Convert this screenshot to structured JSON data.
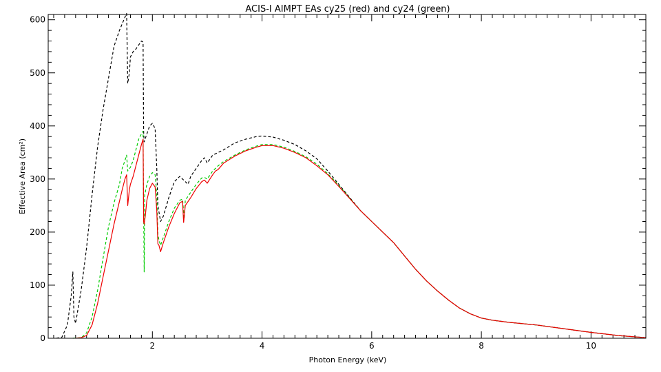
{
  "chart_data": {
    "type": "line",
    "title": "ACIS-I AIMPT EAs cy25 (red) and cy24 (green)",
    "xlabel": "Photon Energy (keV)",
    "ylabel": "Effective Area (cm²)",
    "xlim": [
      0.1,
      11.0
    ],
    "ylim": [
      0,
      610
    ],
    "x_ticks": [
      2,
      4,
      6,
      8,
      10
    ],
    "y_ticks": [
      0,
      100,
      200,
      300,
      400,
      500,
      600
    ],
    "grid": false,
    "legend": "none",
    "series": [
      {
        "color": "#000000",
        "style": "dashed",
        "points": [
          [
            0.25,
            0
          ],
          [
            0.35,
            2
          ],
          [
            0.45,
            25
          ],
          [
            0.52,
            80
          ],
          [
            0.55,
            125
          ],
          [
            0.57,
            40
          ],
          [
            0.6,
            28
          ],
          [
            0.7,
            90
          ],
          [
            0.8,
            170
          ],
          [
            0.9,
            270
          ],
          [
            1.0,
            360
          ],
          [
            1.1,
            430
          ],
          [
            1.2,
            490
          ],
          [
            1.3,
            550
          ],
          [
            1.4,
            580
          ],
          [
            1.5,
            605
          ],
          [
            1.53,
            612
          ],
          [
            1.55,
            480
          ],
          [
            1.58,
            500
          ],
          [
            1.6,
            530
          ],
          [
            1.65,
            540
          ],
          [
            1.7,
            545
          ],
          [
            1.8,
            560
          ],
          [
            1.83,
            558
          ],
          [
            1.84,
            390
          ],
          [
            1.85,
            370
          ],
          [
            1.9,
            385
          ],
          [
            1.95,
            400
          ],
          [
            2.0,
            405
          ],
          [
            2.05,
            395
          ],
          [
            2.08,
            320
          ],
          [
            2.1,
            250
          ],
          [
            2.15,
            220
          ],
          [
            2.2,
            230
          ],
          [
            2.3,
            265
          ],
          [
            2.4,
            295
          ],
          [
            2.5,
            305
          ],
          [
            2.55,
            300
          ],
          [
            2.6,
            295
          ],
          [
            2.65,
            290
          ],
          [
            2.7,
            305
          ],
          [
            2.8,
            320
          ],
          [
            2.9,
            335
          ],
          [
            2.95,
            340
          ],
          [
            3.0,
            330
          ],
          [
            3.1,
            345
          ],
          [
            3.2,
            350
          ],
          [
            3.3,
            355
          ],
          [
            3.5,
            368
          ],
          [
            3.7,
            375
          ],
          [
            3.9,
            380
          ],
          [
            4.0,
            381
          ],
          [
            4.2,
            379
          ],
          [
            4.4,
            373
          ],
          [
            4.6,
            365
          ],
          [
            4.8,
            353
          ],
          [
            5.0,
            338
          ],
          [
            5.2,
            315
          ],
          [
            5.4,
            290
          ],
          [
            5.6,
            265
          ],
          [
            5.8,
            240
          ],
          [
            6.0,
            220
          ],
          [
            6.2,
            200
          ],
          [
            6.4,
            180
          ],
          [
            6.6,
            155
          ],
          [
            6.8,
            130
          ],
          [
            7.0,
            108
          ],
          [
            7.2,
            89
          ],
          [
            7.4,
            72
          ],
          [
            7.6,
            57
          ],
          [
            7.8,
            46
          ],
          [
            8.0,
            38
          ],
          [
            8.2,
            34
          ],
          [
            8.5,
            30
          ],
          [
            9.0,
            25
          ],
          [
            9.5,
            18
          ],
          [
            10.0,
            11
          ],
          [
            10.5,
            5
          ],
          [
            11.0,
            1
          ]
        ]
      },
      {
        "color": "#00cc00",
        "style": "dashed",
        "points": [
          [
            0.55,
            0
          ],
          [
            0.7,
            1
          ],
          [
            0.8,
            10
          ],
          [
            0.9,
            40
          ],
          [
            1.0,
            90
          ],
          [
            1.1,
            150
          ],
          [
            1.2,
            210
          ],
          [
            1.3,
            255
          ],
          [
            1.4,
            290
          ],
          [
            1.45,
            320
          ],
          [
            1.5,
            335
          ],
          [
            1.53,
            345
          ],
          [
            1.55,
            315
          ],
          [
            1.6,
            322
          ],
          [
            1.65,
            335
          ],
          [
            1.7,
            355
          ],
          [
            1.75,
            375
          ],
          [
            1.8,
            385
          ],
          [
            1.83,
            390
          ],
          [
            1.84,
            240
          ],
          [
            1.85,
            125
          ],
          [
            1.86,
            270
          ],
          [
            1.9,
            290
          ],
          [
            1.95,
            305
          ],
          [
            2.0,
            312
          ],
          [
            2.05,
            308
          ],
          [
            2.08,
            270
          ],
          [
            2.1,
            195
          ],
          [
            2.12,
            185
          ],
          [
            2.15,
            175
          ],
          [
            2.2,
            190
          ],
          [
            2.3,
            220
          ],
          [
            2.4,
            245
          ],
          [
            2.5,
            260
          ],
          [
            2.55,
            262
          ],
          [
            2.58,
            225
          ],
          [
            2.6,
            260
          ],
          [
            2.7,
            275
          ],
          [
            2.8,
            290
          ],
          [
            2.9,
            302
          ],
          [
            2.95,
            303
          ],
          [
            3.0,
            300
          ],
          [
            3.1,
            315
          ],
          [
            3.15,
            320
          ],
          [
            3.2,
            325
          ],
          [
            3.3,
            333
          ],
          [
            3.5,
            345
          ],
          [
            3.7,
            355
          ],
          [
            3.9,
            362
          ],
          [
            4.0,
            365
          ],
          [
            4.2,
            365
          ],
          [
            4.4,
            360
          ],
          [
            4.6,
            352
          ],
          [
            4.8,
            342
          ],
          [
            5.0,
            328
          ],
          [
            5.2,
            310
          ],
          [
            5.4,
            288
          ],
          [
            5.6,
            264
          ],
          [
            5.8,
            240
          ],
          [
            6.0,
            220
          ],
          [
            6.2,
            200
          ],
          [
            6.4,
            180
          ],
          [
            6.6,
            155
          ],
          [
            6.8,
            130
          ],
          [
            7.0,
            108
          ],
          [
            7.2,
            89
          ],
          [
            7.4,
            72
          ],
          [
            7.6,
            57
          ],
          [
            7.8,
            46
          ],
          [
            8.0,
            38
          ],
          [
            8.2,
            34
          ],
          [
            8.5,
            30
          ],
          [
            9.0,
            25
          ],
          [
            9.5,
            18
          ],
          [
            10.0,
            11
          ],
          [
            10.5,
            5
          ],
          [
            11.0,
            1
          ]
        ]
      },
      {
        "color": "#ee0000",
        "style": "solid",
        "points": [
          [
            0.6,
            0
          ],
          [
            0.7,
            1
          ],
          [
            0.8,
            5
          ],
          [
            0.9,
            25
          ],
          [
            1.0,
            65
          ],
          [
            1.1,
            115
          ],
          [
            1.2,
            165
          ],
          [
            1.3,
            215
          ],
          [
            1.4,
            258
          ],
          [
            1.45,
            280
          ],
          [
            1.5,
            300
          ],
          [
            1.53,
            308
          ],
          [
            1.55,
            250
          ],
          [
            1.58,
            280
          ],
          [
            1.6,
            290
          ],
          [
            1.65,
            305
          ],
          [
            1.7,
            325
          ],
          [
            1.75,
            345
          ],
          [
            1.8,
            365
          ],
          [
            1.83,
            375
          ],
          [
            1.84,
            220
          ],
          [
            1.85,
            215
          ],
          [
            1.87,
            230
          ],
          [
            1.9,
            260
          ],
          [
            1.95,
            282
          ],
          [
            2.0,
            292
          ],
          [
            2.05,
            285
          ],
          [
            2.08,
            240
          ],
          [
            2.1,
            178
          ],
          [
            2.12,
            175
          ],
          [
            2.15,
            163
          ],
          [
            2.2,
            180
          ],
          [
            2.3,
            210
          ],
          [
            2.4,
            235
          ],
          [
            2.5,
            255
          ],
          [
            2.55,
            258
          ],
          [
            2.57,
            218
          ],
          [
            2.6,
            250
          ],
          [
            2.7,
            265
          ],
          [
            2.8,
            282
          ],
          [
            2.9,
            295
          ],
          [
            2.95,
            298
          ],
          [
            3.0,
            292
          ],
          [
            3.1,
            308
          ],
          [
            3.15,
            315
          ],
          [
            3.2,
            318
          ],
          [
            3.3,
            330
          ],
          [
            3.5,
            343
          ],
          [
            3.7,
            353
          ],
          [
            3.9,
            360
          ],
          [
            4.0,
            363
          ],
          [
            4.2,
            363
          ],
          [
            4.4,
            358
          ],
          [
            4.6,
            350
          ],
          [
            4.8,
            340
          ],
          [
            5.0,
            325
          ],
          [
            5.2,
            308
          ],
          [
            5.4,
            286
          ],
          [
            5.6,
            263
          ],
          [
            5.8,
            240
          ],
          [
            6.0,
            220
          ],
          [
            6.2,
            200
          ],
          [
            6.4,
            180
          ],
          [
            6.6,
            155
          ],
          [
            6.8,
            130
          ],
          [
            7.0,
            108
          ],
          [
            7.2,
            89
          ],
          [
            7.4,
            72
          ],
          [
            7.6,
            57
          ],
          [
            7.8,
            46
          ],
          [
            8.0,
            38
          ],
          [
            8.2,
            34
          ],
          [
            8.5,
            30
          ],
          [
            9.0,
            25
          ],
          [
            9.5,
            18
          ],
          [
            10.0,
            11
          ],
          [
            10.5,
            5
          ],
          [
            11.0,
            1
          ]
        ]
      }
    ]
  }
}
